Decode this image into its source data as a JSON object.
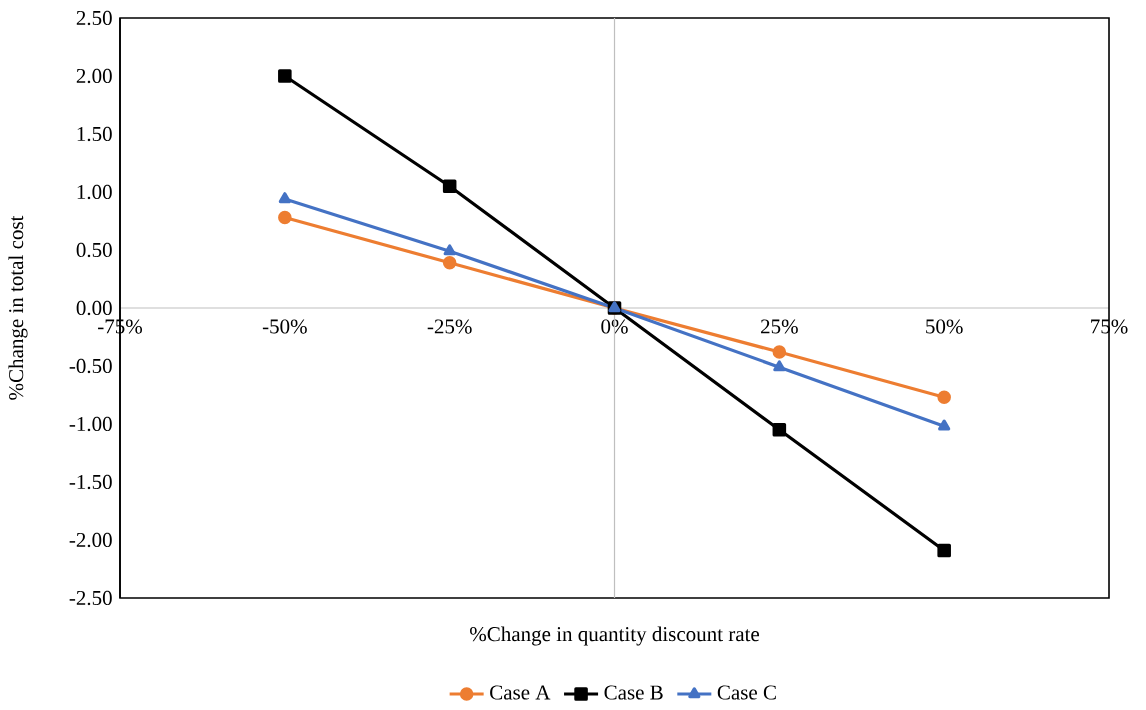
{
  "chart_data": {
    "type": "line",
    "xlabel": "%Change in quantity discount rate",
    "ylabel": "%Change in total cost",
    "x": [
      -50,
      -25,
      0,
      25,
      50
    ],
    "series": [
      {
        "name": "Case A",
        "color": "#ed7d31",
        "marker": "circle",
        "values": [
          0.78,
          0.39,
          0,
          -0.38,
          -0.77
        ]
      },
      {
        "name": "Case B",
        "color": "#000000",
        "marker": "square",
        "values": [
          2.0,
          1.05,
          0,
          -1.05,
          -2.09
        ]
      },
      {
        "name": "Case C",
        "color": "#4472c4",
        "marker": "triangle",
        "values": [
          0.94,
          0.49,
          0,
          -0.51,
          -1.02
        ]
      }
    ],
    "xlim": [
      -75,
      75
    ],
    "xticks": [
      {
        "value": -75,
        "label": "-75%"
      },
      {
        "value": -50,
        "label": "-50%"
      },
      {
        "value": -25,
        "label": "-25%"
      },
      {
        "value": 0,
        "label": "0%"
      },
      {
        "value": 25,
        "label": "25%"
      },
      {
        "value": 50,
        "label": "50%"
      },
      {
        "value": 75,
        "label": "75%"
      }
    ],
    "ylim": [
      -2.5,
      2.5
    ],
    "yticks": [
      {
        "value": -2.5,
        "label": "-2.50"
      },
      {
        "value": -2.0,
        "label": "-2.00"
      },
      {
        "value": -1.5,
        "label": "-1.50"
      },
      {
        "value": -1.0,
        "label": "-1.00"
      },
      {
        "value": -0.5,
        "label": "-0.50"
      },
      {
        "value": 0,
        "label": "0.00"
      },
      {
        "value": 0.5,
        "label": "0.50"
      },
      {
        "value": 1.0,
        "label": "1.00"
      },
      {
        "value": 1.5,
        "label": "1.50"
      },
      {
        "value": 2.0,
        "label": "2.00"
      },
      {
        "value": 2.5,
        "label": "2.50"
      }
    ],
    "ref_lines": [
      {
        "axis": "x",
        "value": 0,
        "color": "#bfbfbf"
      }
    ],
    "grid": false,
    "legend": "bottom",
    "line_style": "solid"
  }
}
